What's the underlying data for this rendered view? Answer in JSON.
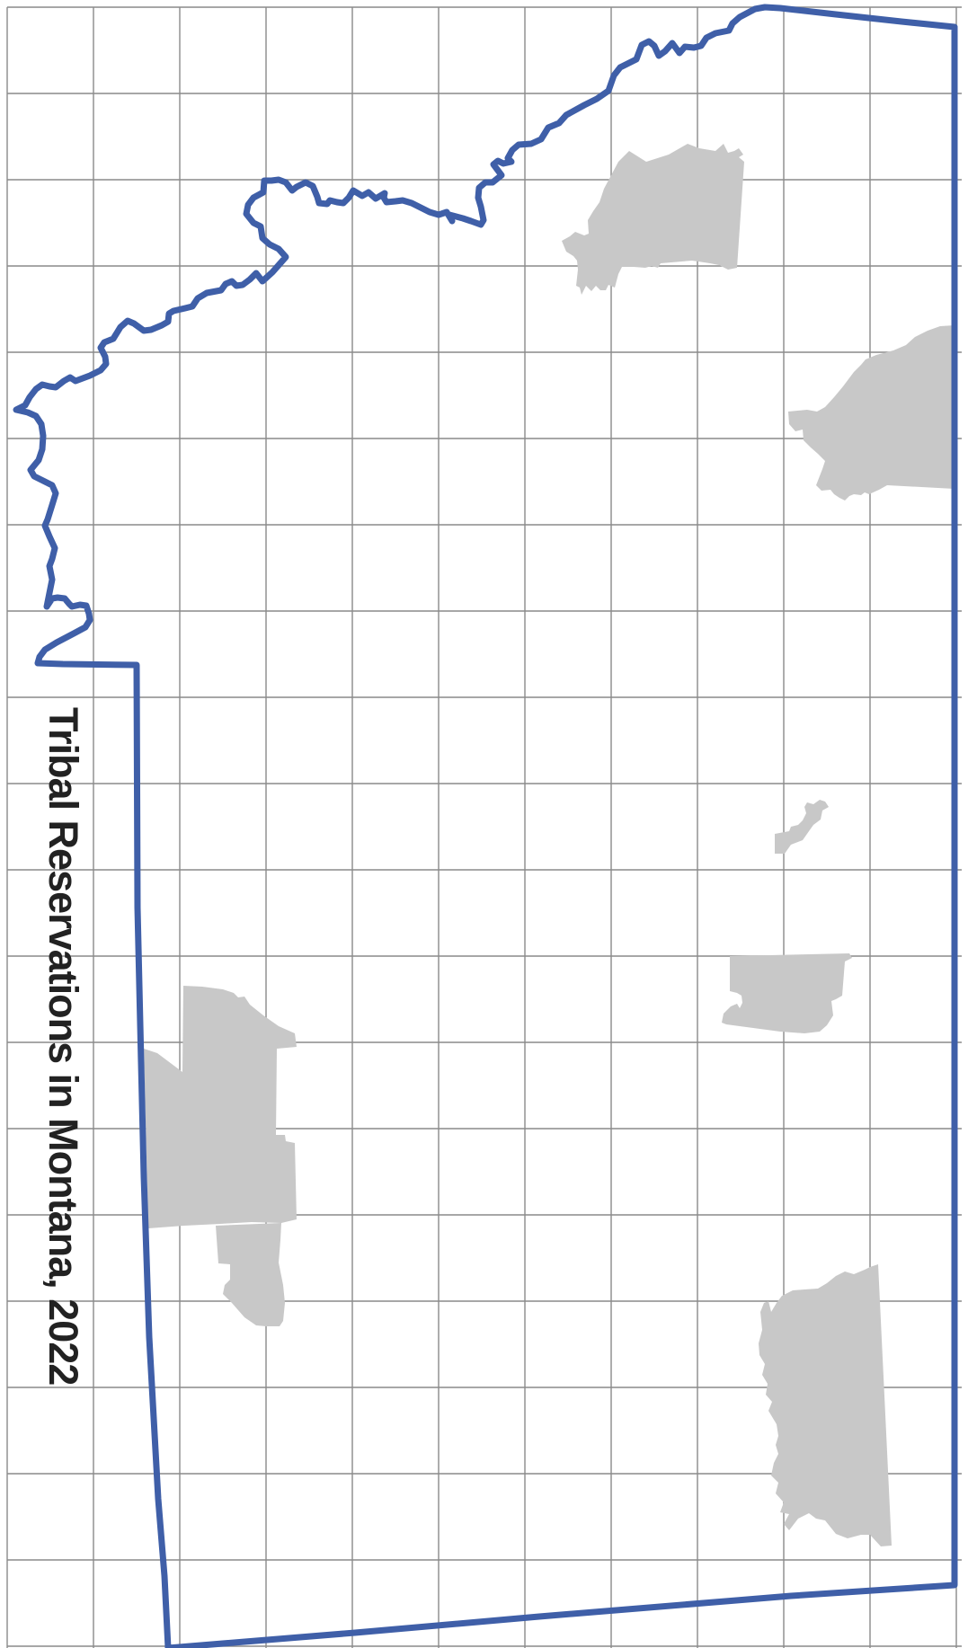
{
  "title": "Tribal Reservations in Montana, 2022",
  "colors": {
    "background": "#ffffff",
    "grid": "#8a8a8a",
    "state_border": "#3f5fa8",
    "reservation_fill": "#c8c8c8",
    "title_text": "#222222"
  },
  "layers": {
    "state_border": "montana-state-outline",
    "reservations": "tribal-reservation-areas",
    "grid": "reference-grid"
  }
}
